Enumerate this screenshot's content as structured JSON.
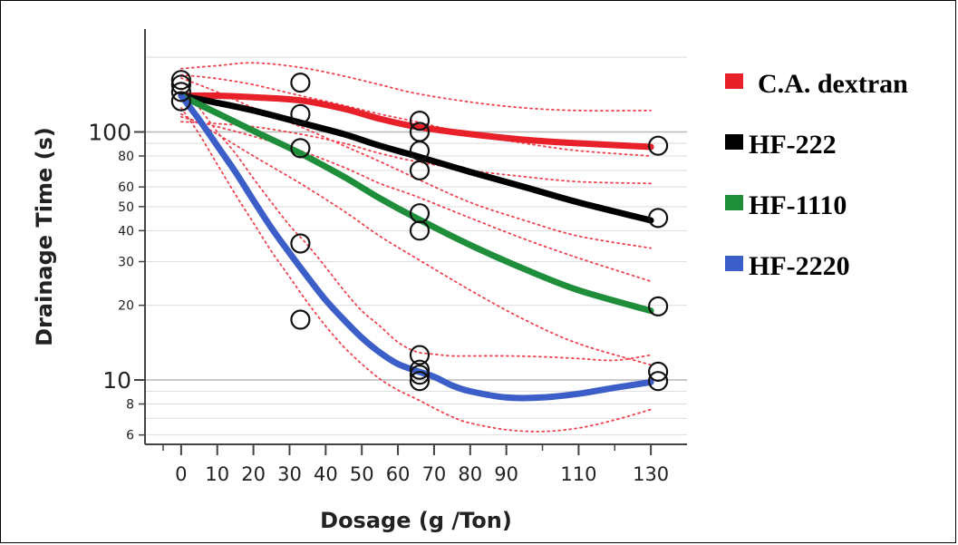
{
  "chart_data": {
    "type": "line",
    "xlabel": "Dosage (g /Ton)",
    "ylabel": "Drainage Time (s)",
    "yscale": "log",
    "xlim": [
      -10,
      140
    ],
    "ylim": [
      5.5,
      260
    ],
    "x_ticks": [
      0,
      10,
      20,
      30,
      40,
      50,
      60,
      70,
      80,
      90,
      110,
      130
    ],
    "x_tick_labels": [
      "0",
      "10",
      "20",
      "30",
      "40",
      "50",
      "60",
      "70",
      "80",
      "90",
      "110",
      "130"
    ],
    "y_ticks_major": [
      100,
      10
    ],
    "y_ticks_minor": [
      80,
      60,
      50,
      40,
      30,
      20,
      8,
      6
    ],
    "grid": true,
    "legend_position": "right",
    "series": [
      {
        "name": "C.A. dextran",
        "color": "#e8202a",
        "x": [
          0,
          10,
          20,
          33,
          45,
          55,
          65,
          80,
          95,
          110,
          130
        ],
        "y": [
          140,
          140,
          138,
          134,
          124,
          113,
          105,
          98,
          93,
          90,
          87
        ],
        "band_upper": [
          180,
          185,
          190,
          182,
          168,
          155,
          143,
          132,
          125,
          122,
          122
        ],
        "band_lower": [
          110,
          108,
          105,
          98,
          90,
          82,
          76,
          70,
          66,
          63,
          62
        ]
      },
      {
        "name": "HF-222",
        "color": "#000000",
        "x": [
          0,
          10,
          20,
          33,
          45,
          55,
          65,
          80,
          95,
          110,
          130
        ],
        "y": [
          140,
          131,
          122,
          109,
          98,
          88,
          80,
          69,
          60,
          52,
          44
        ],
        "band_upper": [
          170,
          164,
          155,
          140,
          128,
          118,
          110,
          98,
          90,
          84,
          80
        ],
        "band_lower": [
          115,
          105,
          96,
          84,
          72,
          62,
          55,
          45,
          37,
          31,
          25
        ]
      },
      {
        "name": "HF-1110",
        "color": "#1f8e3a",
        "x": [
          0,
          10,
          20,
          33,
          45,
          55,
          65,
          80,
          95,
          110,
          130
        ],
        "y": [
          140,
          119,
          101,
          82,
          66,
          54,
          45,
          35,
          28,
          23,
          19
        ],
        "band_upper": [
          165,
          145,
          125,
          105,
          88,
          76,
          65,
          52,
          44,
          38,
          34
        ],
        "band_lower": [
          118,
          98,
          80,
          62,
          48,
          38,
          31,
          23,
          17.5,
          14,
          11.5
        ]
      },
      {
        "name": "HF-2220",
        "color": "#3c5ec8",
        "x": [
          0,
          5,
          10,
          15,
          20,
          25,
          30,
          35,
          40,
          45,
          50,
          55,
          60,
          65,
          70,
          75,
          80,
          90,
          100,
          110,
          120,
          130
        ],
        "y": [
          140,
          112,
          88,
          69,
          53,
          41,
          32.5,
          26,
          21,
          17.5,
          14.8,
          12.9,
          11.6,
          10.9,
          10.3,
          9.5,
          9.0,
          8.5,
          8.5,
          8.8,
          9.3,
          9.8
        ],
        "band_upper": [
          150,
          125,
          100,
          82,
          65,
          52,
          42,
          35,
          28.5,
          23,
          19,
          16.5,
          14.2,
          13,
          12.7,
          12.5,
          12.5,
          12.5,
          12.4,
          12.2,
          12.0,
          12.6
        ],
        "band_lower": [
          125,
          98,
          74,
          56,
          43,
          33,
          26,
          20.5,
          16.5,
          13.6,
          11.6,
          10.1,
          9.1,
          8.4,
          7.7,
          7.1,
          6.7,
          6.3,
          6.2,
          6.4,
          6.9,
          7.6
        ]
      }
    ],
    "observations": [
      {
        "x": 0,
        "y": 162
      },
      {
        "x": 0,
        "y": 155
      },
      {
        "x": 0,
        "y": 145
      },
      {
        "x": 0,
        "y": 133
      },
      {
        "x": 33,
        "y": 158
      },
      {
        "x": 33,
        "y": 118
      },
      {
        "x": 33,
        "y": 86
      },
      {
        "x": 33,
        "y": 35.5
      },
      {
        "x": 33,
        "y": 17.5
      },
      {
        "x": 66,
        "y": 111
      },
      {
        "x": 66,
        "y": 100
      },
      {
        "x": 66,
        "y": 84
      },
      {
        "x": 66,
        "y": 70
      },
      {
        "x": 66,
        "y": 47
      },
      {
        "x": 66,
        "y": 40
      },
      {
        "x": 66,
        "y": 12.6
      },
      {
        "x": 66,
        "y": 11
      },
      {
        "x": 66,
        "y": 10.5
      },
      {
        "x": 66,
        "y": 9.9
      },
      {
        "x": 132,
        "y": 88
      },
      {
        "x": 132,
        "y": 45
      },
      {
        "x": 132,
        "y": 19.8
      },
      {
        "x": 132,
        "y": 10.8
      },
      {
        "x": 132,
        "y": 9.9
      }
    ]
  }
}
